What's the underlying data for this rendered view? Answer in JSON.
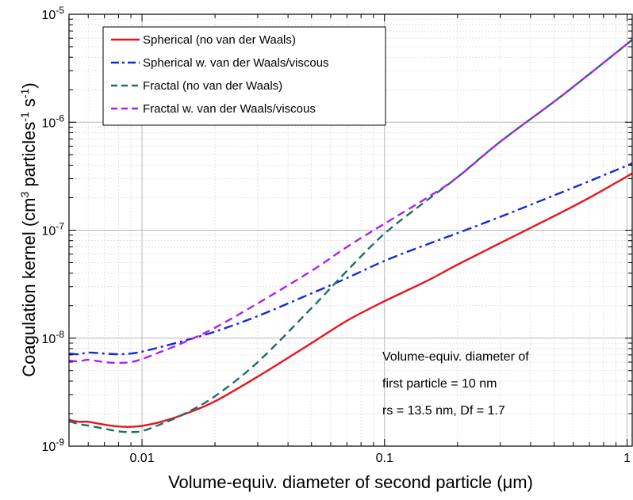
{
  "chart_data": {
    "type": "line",
    "title": "",
    "xlabel": "Volume-equiv. diameter of second particle (μm)",
    "ylabel": {
      "prefix": "Coagulation kernel  (cm",
      "sup1": "3",
      "mid": " particles",
      "sup2": "-1",
      "mid2": " s",
      "sup3": "-1",
      "suffix": ")"
    },
    "x_scale": "log",
    "y_scale": "log",
    "xlim": [
      0.005,
      1.05
    ],
    "ylim": [
      1e-09,
      1e-05
    ],
    "grid": true,
    "legend_position": "top-left",
    "x_ticks": [
      {
        "value": 0.01,
        "label": "0.01"
      },
      {
        "value": 0.1,
        "label": "0.1"
      },
      {
        "value": 1,
        "label": "1"
      }
    ],
    "y_ticks": [
      {
        "value": 1e-09,
        "base": "10",
        "exp": "-9"
      },
      {
        "value": 1e-08,
        "base": "10",
        "exp": "-8"
      },
      {
        "value": 1e-07,
        "base": "10",
        "exp": "-7"
      },
      {
        "value": 1e-06,
        "base": "10",
        "exp": "-6"
      },
      {
        "value": 1e-05,
        "base": "10",
        "exp": "-5"
      }
    ],
    "series": [
      {
        "name": "Spherical (no van der Waals)",
        "color": "#e8141c",
        "dash": "solid",
        "points": [
          [
            0.005,
            1.75e-09
          ],
          [
            0.0055,
            1.68e-09
          ],
          [
            0.006,
            1.68e-09
          ],
          [
            0.007,
            1.58e-09
          ],
          [
            0.008,
            1.52e-09
          ],
          [
            0.009,
            1.51e-09
          ],
          [
            0.01,
            1.54e-09
          ],
          [
            0.012,
            1.68e-09
          ],
          [
            0.015,
            1.98e-09
          ],
          [
            0.02,
            2.6e-09
          ],
          [
            0.03,
            4.4e-09
          ],
          [
            0.05,
            9e-09
          ],
          [
            0.07,
            1.45e-08
          ],
          [
            0.1,
            2.2e-08
          ],
          [
            0.15,
            3.4e-08
          ],
          [
            0.2,
            4.8e-08
          ],
          [
            0.3,
            7.6e-08
          ],
          [
            0.5,
            1.35e-07
          ],
          [
            0.7,
            2e-07
          ],
          [
            1.05,
            3.35e-07
          ]
        ]
      },
      {
        "name": "Spherical w. van der Waals/viscous",
        "color": "#1428d8",
        "dash": "dashdot",
        "points": [
          [
            0.005,
            7.2e-09
          ],
          [
            0.0055,
            7.1e-09
          ],
          [
            0.006,
            7.35e-09
          ],
          [
            0.007,
            7.2e-09
          ],
          [
            0.008,
            7.1e-09
          ],
          [
            0.009,
            7.2e-09
          ],
          [
            0.01,
            7.5e-09
          ],
          [
            0.012,
            8.3e-09
          ],
          [
            0.015,
            9.5e-09
          ],
          [
            0.02,
            1.15e-08
          ],
          [
            0.03,
            1.6e-08
          ],
          [
            0.05,
            2.6e-08
          ],
          [
            0.07,
            3.6e-08
          ],
          [
            0.1,
            5.2e-08
          ],
          [
            0.15,
            7.4e-08
          ],
          [
            0.2,
            9.4e-08
          ],
          [
            0.3,
            1.33e-07
          ],
          [
            0.5,
            2.1e-07
          ],
          [
            0.7,
            2.85e-07
          ],
          [
            1.05,
            4.15e-07
          ]
        ]
      },
      {
        "name": "Fractal (no van der Waals)",
        "color": "#1f6e6a",
        "dash": "dashed",
        "points": [
          [
            0.005,
            1.7e-09
          ],
          [
            0.0055,
            1.6e-09
          ],
          [
            0.006,
            1.55e-09
          ],
          [
            0.007,
            1.45e-09
          ],
          [
            0.008,
            1.37e-09
          ],
          [
            0.009,
            1.35e-09
          ],
          [
            0.01,
            1.38e-09
          ],
          [
            0.012,
            1.6e-09
          ],
          [
            0.015,
            2e-09
          ],
          [
            0.02,
            2.9e-09
          ],
          [
            0.03,
            6e-09
          ],
          [
            0.05,
            1.9e-08
          ],
          [
            0.07,
            4.2e-08
          ],
          [
            0.1,
            9.3e-08
          ],
          [
            0.15,
            1.9e-07
          ],
          [
            0.2,
            3.1e-07
          ],
          [
            0.3,
            6.6e-07
          ],
          [
            0.5,
            1.55e-06
          ],
          [
            0.7,
            2.8e-06
          ],
          [
            1.05,
            5.8e-06
          ]
        ]
      },
      {
        "name": "Fractal w. van der Waals/viscous",
        "color": "#b11ff0",
        "dash": "dashed",
        "points": [
          [
            0.005,
            6.2e-09
          ],
          [
            0.0055,
            6.1e-09
          ],
          [
            0.006,
            6.3e-09
          ],
          [
            0.007,
            6e-09
          ],
          [
            0.008,
            5.9e-09
          ],
          [
            0.009,
            6e-09
          ],
          [
            0.01,
            6.4e-09
          ],
          [
            0.012,
            7.5e-09
          ],
          [
            0.015,
            9.2e-09
          ],
          [
            0.02,
            1.25e-08
          ],
          [
            0.03,
            2.1e-08
          ],
          [
            0.05,
            4.2e-08
          ],
          [
            0.07,
            7e-08
          ],
          [
            0.1,
            1.15e-07
          ],
          [
            0.15,
            2e-07
          ],
          [
            0.2,
            3.1e-07
          ],
          [
            0.3,
            6.6e-07
          ],
          [
            0.5,
            1.55e-06
          ],
          [
            0.7,
            2.8e-06
          ],
          [
            1.05,
            5.8e-06
          ]
        ]
      }
    ],
    "annotation": [
      "Volume-equiv. diameter of",
      "first particle = 10 nm",
      "rs = 13.5 nm, Df = 1.7"
    ]
  }
}
